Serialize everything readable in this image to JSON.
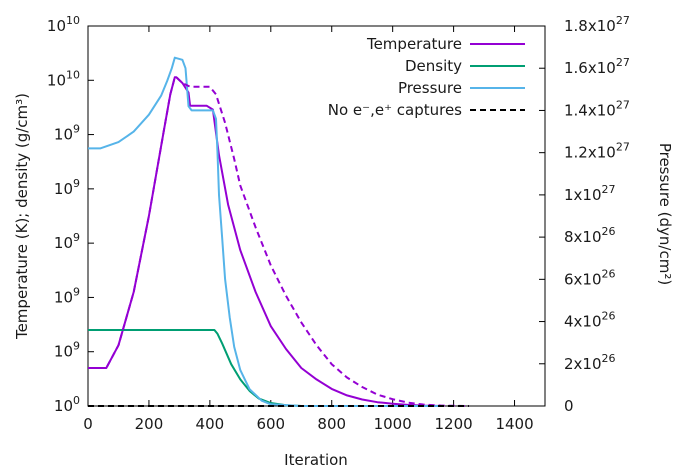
{
  "chart_data": {
    "type": "line",
    "xlabel": "Iteration",
    "ylabel_left": "Temperature (K); density (g/cm³)",
    "ylabel_right": "Pressure (dyn/cm²)",
    "xlim": [
      0,
      1500
    ],
    "ylim_left": [
      0,
      1.0
    ],
    "ylim_right": [
      0,
      1.8e+27
    ],
    "x_ticks": [
      "0",
      "200",
      "400",
      "600",
      "800",
      "1000",
      "1200",
      "1400"
    ],
    "y_left_ticks": [
      {
        "base": "10",
        "exp": "0"
      },
      {
        "base": "10",
        "exp": "9"
      },
      {
        "base": "10",
        "exp": "9"
      },
      {
        "base": "10",
        "exp": "9"
      },
      {
        "base": "10",
        "exp": "9"
      },
      {
        "base": "10",
        "exp": "9"
      },
      {
        "base": "10",
        "exp": "10"
      },
      {
        "base": "10",
        "exp": "10"
      }
    ],
    "y_right_ticks": [
      {
        "base": "0",
        "exp": ""
      },
      {
        "base": "2x10",
        "exp": "26"
      },
      {
        "base": "4x10",
        "exp": "26"
      },
      {
        "base": "6x10",
        "exp": "26"
      },
      {
        "base": "8x10",
        "exp": "26"
      },
      {
        "base": "1x10",
        "exp": "27"
      },
      {
        "base": "1.2x10",
        "exp": "27"
      },
      {
        "base": "1.4x10",
        "exp": "27"
      },
      {
        "base": "1.6x10",
        "exp": "27"
      },
      {
        "base": "1.8x10",
        "exp": "27"
      }
    ],
    "legend": {
      "position": "top-right",
      "entries": [
        {
          "label": "Temperature",
          "color": "#9400d3",
          "dash": false
        },
        {
          "label": "Density",
          "color": "#009e73",
          "dash": false
        },
        {
          "label": "Pressure",
          "color": "#56b4e9",
          "dash": false
        },
        {
          "label": "No e⁻,e⁺ captures",
          "color": "#000000",
          "dash": true
        }
      ]
    },
    "series": [
      {
        "name": "Temperature",
        "color": "#9400d3",
        "dash": false,
        "axis": "left",
        "x": [
          0,
          60,
          100,
          150,
          200,
          250,
          270,
          285,
          290,
          310,
          330,
          335,
          360,
          390,
          410,
          430,
          460,
          500,
          550,
          600,
          650,
          700,
          750,
          800,
          850,
          900,
          950,
          1000,
          1050,
          1100,
          1160
        ],
        "y": [
          0.1,
          0.1,
          0.16,
          0.3,
          0.5,
          0.73,
          0.82,
          0.865,
          0.865,
          0.85,
          0.825,
          0.79,
          0.79,
          0.79,
          0.78,
          0.66,
          0.53,
          0.41,
          0.3,
          0.21,
          0.15,
          0.1,
          0.07,
          0.045,
          0.028,
          0.017,
          0.01,
          0.006,
          0.003,
          0.001,
          0.0
        ]
      },
      {
        "name": "Density",
        "color": "#009e73",
        "dash": false,
        "axis": "left",
        "x": [
          0,
          415,
          425,
          440,
          470,
          500,
          530,
          560,
          600,
          650,
          700,
          1160
        ],
        "y": [
          0.2,
          0.2,
          0.19,
          0.165,
          0.11,
          0.07,
          0.04,
          0.02,
          0.008,
          0.002,
          0.0,
          0.0
        ]
      },
      {
        "name": "Pressure",
        "color": "#56b4e9",
        "dash": false,
        "axis": "right",
        "x": [
          0,
          40,
          100,
          150,
          200,
          240,
          260,
          275,
          285,
          310,
          320,
          330,
          340,
          410,
          420,
          425,
          430,
          440,
          450,
          465,
          480,
          500,
          530,
          570,
          600,
          700,
          1160
        ],
        "y": [
          1.22e+27,
          1.22e+27,
          1.25e+27,
          1.3e+27,
          1.38e+27,
          1.47e+27,
          1.54e+27,
          1.6e+27,
          1.65e+27,
          1.64e+27,
          1.6e+27,
          1.42e+27,
          1.4e+27,
          1.4e+27,
          1.36e+27,
          1.2e+27,
          1e+27,
          8e+26,
          6e+26,
          4.2e+26,
          2.8e+26,
          1.7e+26,
          8e+25,
          2.5e+25,
          8e+24,
          0.0,
          0.0
        ]
      },
      {
        "name": "No e⁻,e⁺ captures",
        "color": "#9400d3",
        "dash": true,
        "axis": "left",
        "x": [
          0,
          60,
          100,
          150,
          200,
          250,
          270,
          285,
          290,
          310,
          335,
          400,
          420,
          450,
          480,
          500,
          550,
          600,
          650,
          700,
          750,
          800,
          850,
          900,
          950,
          1000,
          1050,
          1100,
          1160,
          1250
        ],
        "y": [
          0.1,
          0.1,
          0.16,
          0.3,
          0.5,
          0.73,
          0.82,
          0.865,
          0.865,
          0.85,
          0.84,
          0.84,
          0.82,
          0.745,
          0.65,
          0.58,
          0.47,
          0.37,
          0.29,
          0.22,
          0.16,
          0.11,
          0.075,
          0.05,
          0.03,
          0.018,
          0.009,
          0.004,
          0.001,
          0.0
        ]
      },
      {
        "name": "",
        "color": "#000000",
        "dash": true,
        "axis": "left",
        "x": [
          0,
          1250
        ],
        "y": [
          0.0,
          0.0
        ]
      }
    ]
  }
}
